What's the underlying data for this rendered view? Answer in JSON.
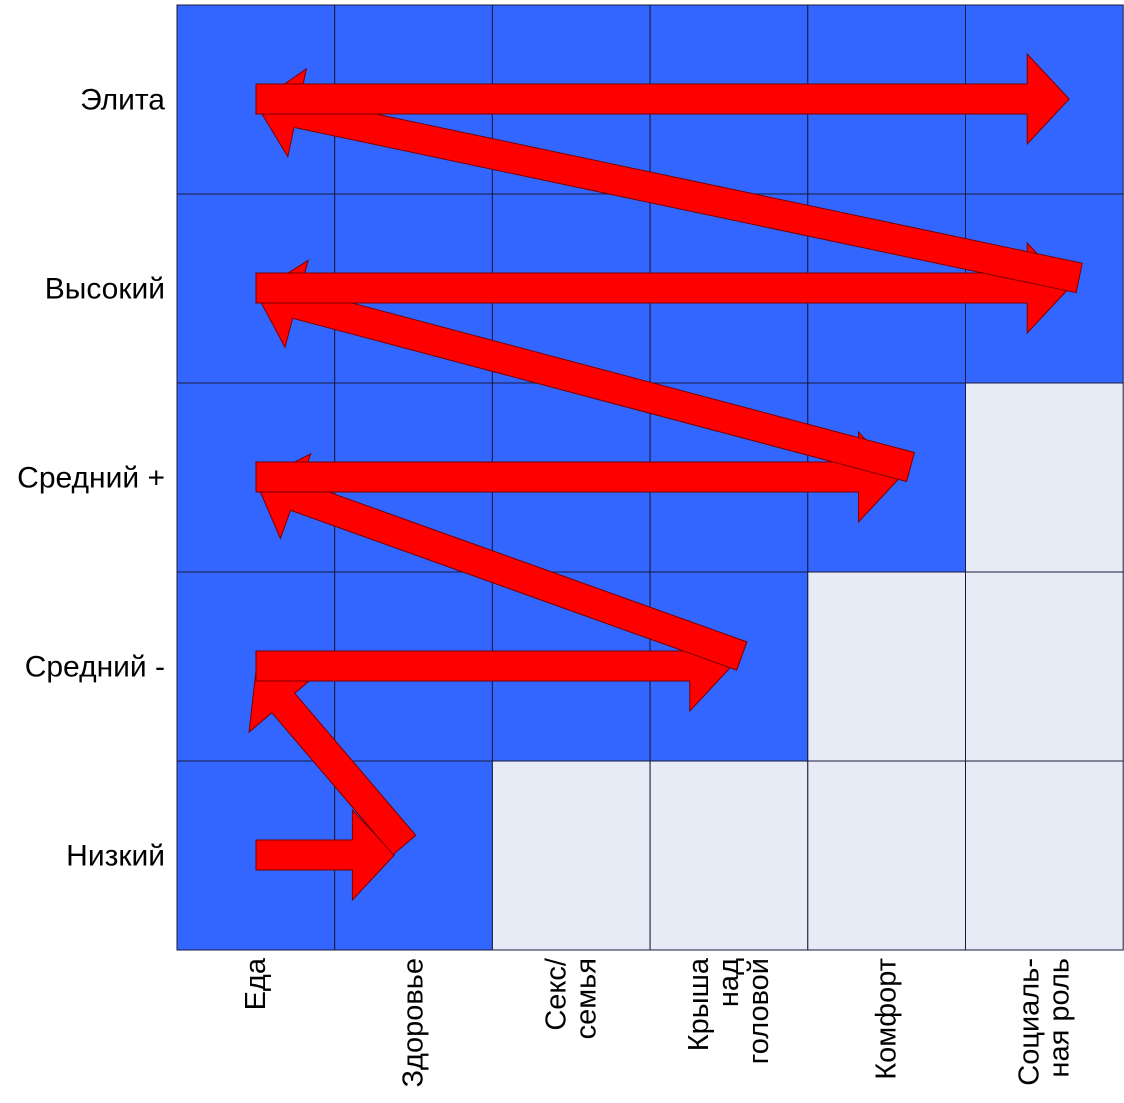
{
  "rows": [
    {
      "label": "Элита"
    },
    {
      "label": "Высокий"
    },
    {
      "label": "Средний +"
    },
    {
      "label": "Средний  -"
    },
    {
      "label": "Низкий"
    }
  ],
  "columns": [
    {
      "lines": [
        "Еда"
      ]
    },
    {
      "lines": [
        "Здоровье"
      ]
    },
    {
      "lines": [
        "Секс/",
        "семья"
      ]
    },
    {
      "lines": [
        "Крыша",
        "над",
        "головой"
      ]
    },
    {
      "lines": [
        "Комфорт"
      ]
    },
    {
      "lines": [
        "Социаль-",
        "ная роль"
      ]
    }
  ],
  "filled_columns_per_row": [
    6,
    6,
    5,
    4,
    2
  ],
  "arrow_reach_column_per_row": [
    6,
    6,
    5,
    4,
    2
  ],
  "colors": {
    "filled": "#3366ff",
    "empty": "#e6ebf5",
    "grid": "#1a1a3a",
    "arrow": "#ff0000",
    "arrow_outline": "#7a0000"
  }
}
